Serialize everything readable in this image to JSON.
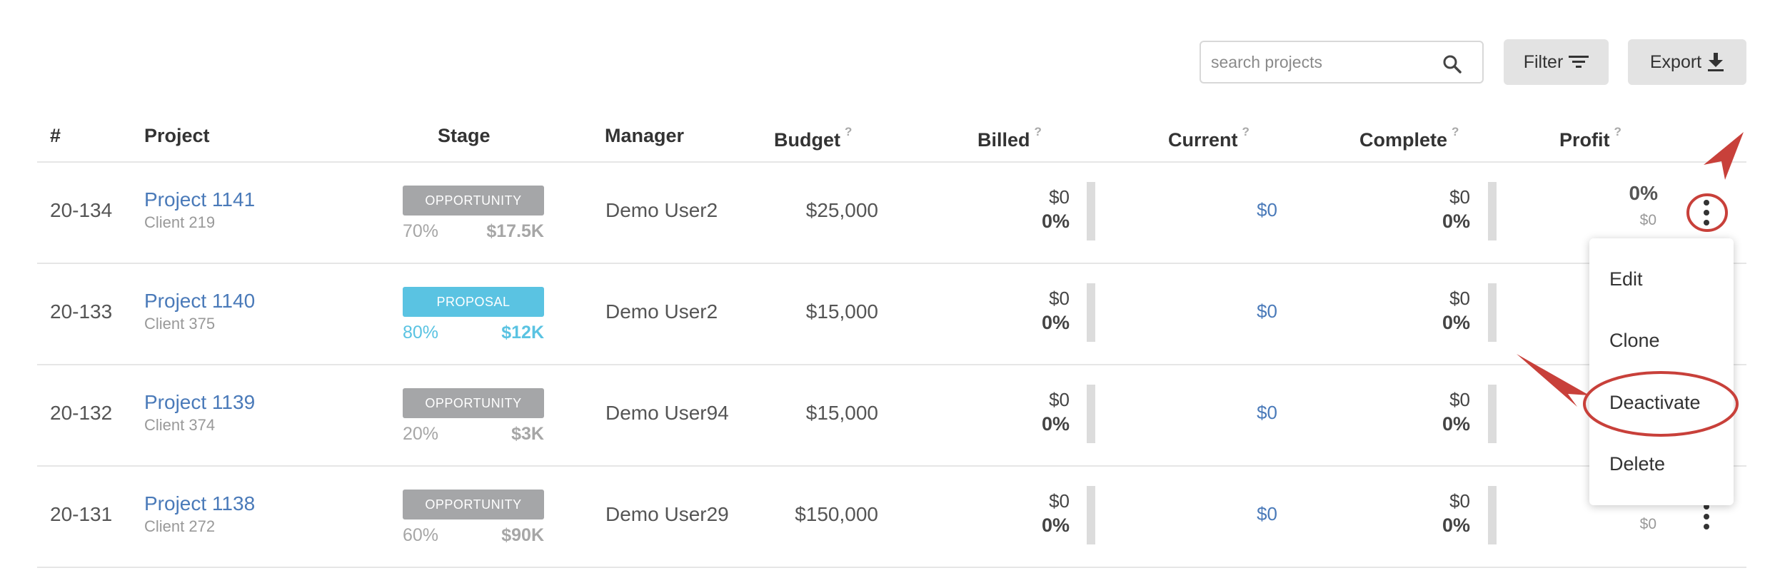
{
  "toolbar": {
    "search_placeholder": "search projects",
    "search_value": "",
    "filter_label": "Filter",
    "export_label": "Export"
  },
  "table": {
    "columns": {
      "num": "#",
      "project": "Project",
      "stage": "Stage",
      "manager": "Manager",
      "budget": "Budget",
      "billed": "Billed",
      "current": "Current",
      "complete": "Complete",
      "profit": "Profit",
      "help": "?"
    },
    "rows": [
      {
        "num": "20-134",
        "project": "Project 1141",
        "client": "Client 219",
        "stage": "OPPORTUNITY",
        "stage_pct": "70%",
        "stage_amt": "$17.5K",
        "manager": "Demo User2",
        "budget": "$25,000",
        "billed_amt": "$0",
        "billed_pct": "0%",
        "current": "$0",
        "complete_amt": "$0",
        "complete_pct": "0%",
        "profit_pct": "0%",
        "profit_amt": "$0"
      },
      {
        "num": "20-133",
        "project": "Project 1140",
        "client": "Client 375",
        "stage": "PROPOSAL",
        "stage_pct": "80%",
        "stage_amt": "$12K",
        "manager": "Demo User2",
        "budget": "$15,000",
        "billed_amt": "$0",
        "billed_pct": "0%",
        "current": "$0",
        "complete_amt": "$0",
        "complete_pct": "0%"
      },
      {
        "num": "20-132",
        "project": "Project 1139",
        "client": "Client 374",
        "stage": "OPPORTUNITY",
        "stage_pct": "20%",
        "stage_amt": "$3K",
        "manager": "Demo User94",
        "budget": "$15,000",
        "billed_amt": "$0",
        "billed_pct": "0%",
        "current": "$0",
        "complete_amt": "$0",
        "complete_pct": "0%"
      },
      {
        "num": "20-131",
        "project": "Project 1138",
        "client": "Client 272",
        "stage": "OPPORTUNITY",
        "stage_pct": "60%",
        "stage_amt": "$90K",
        "manager": "Demo User29",
        "budget": "$150,000",
        "billed_amt": "$0",
        "billed_pct": "0%",
        "current": "$0",
        "complete_amt": "$0",
        "complete_pct": "0%",
        "profit_amt": "$0"
      }
    ]
  },
  "menu": {
    "items": [
      "Edit",
      "Clone",
      "Deactivate",
      "Delete"
    ]
  },
  "colors": {
    "link": "#4a7ab9",
    "proposal": "#5ac3e2",
    "opportunity": "#a5a6a8",
    "annotation": "#c8403a"
  },
  "icons": {
    "search": "search-icon",
    "filter": "filter-icon",
    "export": "download-icon",
    "row_menu": "more-vertical-icon"
  }
}
